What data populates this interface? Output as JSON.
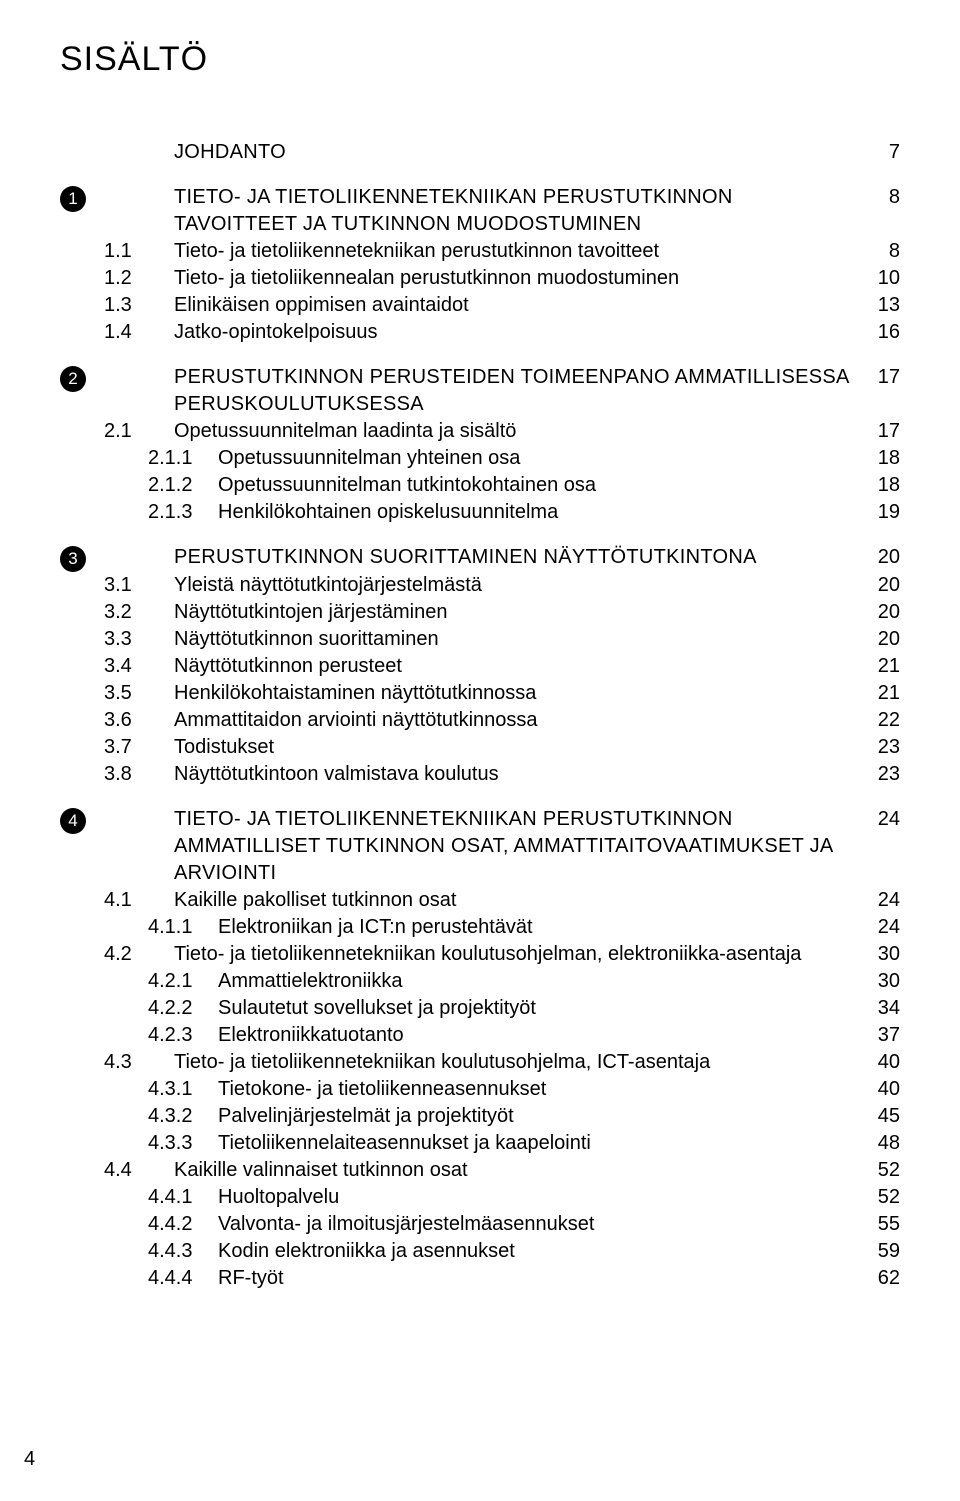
{
  "title": "SISÄLTÖ",
  "footer_page": "4",
  "sections": {
    "johdanto": {
      "label": "JOHDANTO",
      "page": "7"
    },
    "s1": {
      "badge": "1",
      "label": "TIETO- JA TIETOLIIKENNETEKNIIKAN PERUSTUTKINNON TAVOITTEET JA TUTKINNON MUODOSTUMINEN",
      "page": "8",
      "sub": [
        {
          "num": "1.1",
          "label": "Tieto- ja tietoliikennetekniikan perustutkinnon tavoitteet",
          "page": "8"
        },
        {
          "num": "1.2",
          "label": "Tieto- ja tietoliikennealan perustutkinnon muodostuminen",
          "page": "10"
        },
        {
          "num": "1.3",
          "label": "Elinikäisen oppimisen avaintaidot",
          "page": "13"
        },
        {
          "num": "1.4",
          "label": "Jatko-opintokelpoisuus",
          "page": "16"
        }
      ]
    },
    "s2": {
      "badge": "2",
      "label": "PERUSTUTKINNON PERUSTEIDEN TOIMEENPANO AMMATILLISESSA PERUSKOULUTUKSESSA",
      "page": "17",
      "sub": [
        {
          "num": "2.1",
          "label": "Opetussuunnitelman laadinta ja sisältö",
          "page": "17",
          "sub": [
            {
              "num": "2.1.1",
              "label": "Opetussuunnitelman yhteinen osa",
              "page": "18"
            },
            {
              "num": "2.1.2",
              "label": "Opetussuunnitelman tutkintokohtainen osa",
              "page": "18"
            },
            {
              "num": "2.1.3",
              "label": "Henkilökohtainen opiskelusuunnitelma",
              "page": "19"
            }
          ]
        }
      ]
    },
    "s3": {
      "badge": "3",
      "label": "PERUSTUTKINNON SUORITTAMINEN NÄYTTÖTUTKINTONA",
      "page": "20",
      "sub": [
        {
          "num": "3.1",
          "label": "Yleistä näyttötutkintojärjestelmästä",
          "page": "20"
        },
        {
          "num": "3.2",
          "label": "Näyttötutkintojen järjestäminen",
          "page": "20"
        },
        {
          "num": "3.3",
          "label": "Näyttötutkinnon suorittaminen",
          "page": "20"
        },
        {
          "num": "3.4",
          "label": "Näyttötutkinnon perusteet",
          "page": "21"
        },
        {
          "num": "3.5",
          "label": "Henkilökohtaistaminen näyttötutkinnossa",
          "page": "21"
        },
        {
          "num": "3.6",
          "label": "Ammattitaidon arviointi näyttötutkinnossa",
          "page": "22"
        },
        {
          "num": "3.7",
          "label": "Todistukset",
          "page": "23"
        },
        {
          "num": "3.8",
          "label": "Näyttötutkintoon valmistava koulutus",
          "page": "23"
        }
      ]
    },
    "s4": {
      "badge": "4",
      "label": "TIETO- JA TIETOLIIKENNETEKNIIKAN PERUSTUTKINNON AMMATILLISET TUTKINNON OSAT, AMMATTITAITOVAATIMUKSET JA ARVIOINTI",
      "page": "24",
      "sub": [
        {
          "num": "4.1",
          "label": "Kaikille pakolliset tutkinnon osat",
          "page": "24",
          "sub": [
            {
              "num": "4.1.1",
              "label": "Elektroniikan ja ICT:n perustehtävät",
              "page": "24"
            }
          ]
        },
        {
          "num": "4.2",
          "label": "Tieto- ja tietoliikennetekniikan koulutusohjelman, elektroniikka-asentaja",
          "page": "30",
          "sub": [
            {
              "num": "4.2.1",
              "label": "Ammattielektroniikka",
              "page": "30"
            },
            {
              "num": "4.2.2",
              "label": "Sulautetut sovellukset ja projektityöt",
              "page": "34"
            },
            {
              "num": "4.2.3",
              "label": "Elektroniikkatuotanto",
              "page": "37"
            }
          ]
        },
        {
          "num": "4.3",
          "label": "Tieto- ja tietoliikennetekniikan koulutusohjelma, ICT-asentaja",
          "page": "40",
          "sub": [
            {
              "num": "4.3.1",
              "label": "Tietokone- ja tietoliikenneasennukset",
              "page": "40"
            },
            {
              "num": "4.3.2",
              "label": "Palvelinjärjestelmät ja projektityöt",
              "page": "45"
            },
            {
              "num": "4.3.3",
              "label": "Tietoliikennelaiteasennukset ja kaapelointi",
              "page": "48"
            }
          ]
        },
        {
          "num": "4.4",
          "label": "Kaikille valinnaiset tutkinnon osat",
          "page": "52",
          "sub": [
            {
              "num": "4.4.1",
              "label": "Huoltopalvelu",
              "page": "52"
            },
            {
              "num": "4.4.2",
              "label": "Valvonta- ja ilmoitusjärjestelmäasennukset",
              "page": "55"
            },
            {
              "num": "4.4.3",
              "label": "Kodin elektroniikka ja asennukset",
              "page": "59"
            },
            {
              "num": "4.4.4",
              "label": "RF-työt",
              "page": "62"
            }
          ]
        }
      ]
    }
  }
}
